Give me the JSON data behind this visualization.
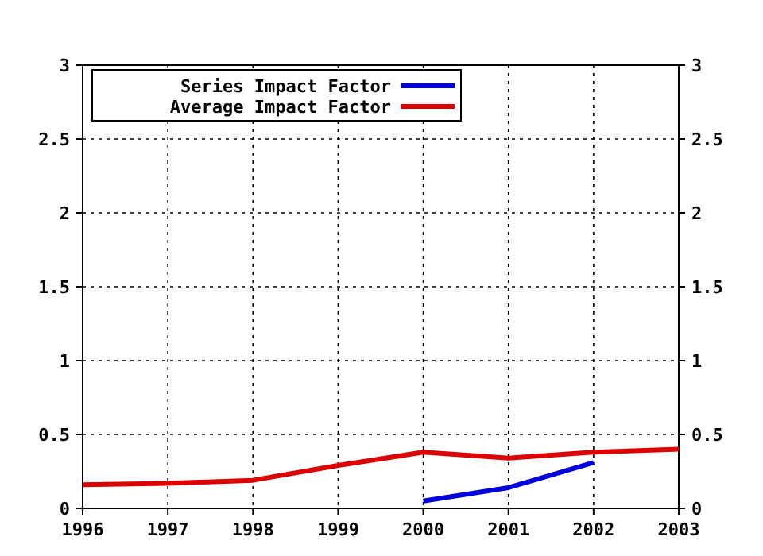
{
  "chart_data": {
    "type": "line",
    "x": [
      1996,
      1997,
      1998,
      1999,
      2000,
      2001,
      2002,
      2003
    ],
    "series": [
      {
        "name": "Series Impact Factor",
        "color": "#0000dd",
        "values": [
          null,
          null,
          null,
          null,
          0.05,
          0.14,
          0.31,
          null
        ]
      },
      {
        "name": "Average Impact Factor",
        "color": "#dd0000",
        "values": [
          0.16,
          0.17,
          0.19,
          0.29,
          0.38,
          0.34,
          0.38,
          0.4
        ]
      }
    ],
    "xlim": [
      1996,
      2003
    ],
    "xticks": [
      1996,
      1997,
      1998,
      1999,
      2000,
      2001,
      2002,
      2003
    ],
    "ylim": [
      0,
      3
    ],
    "yticks": [
      0,
      0.5,
      1,
      1.5,
      2,
      2.5,
      3
    ],
    "y2lim": [
      0,
      3
    ],
    "y2ticks": [
      0,
      0.5,
      1,
      1.5,
      2,
      2.5,
      3
    ],
    "grid": true,
    "legend": "top left",
    "marker": "none",
    "line_style": "solid"
  }
}
